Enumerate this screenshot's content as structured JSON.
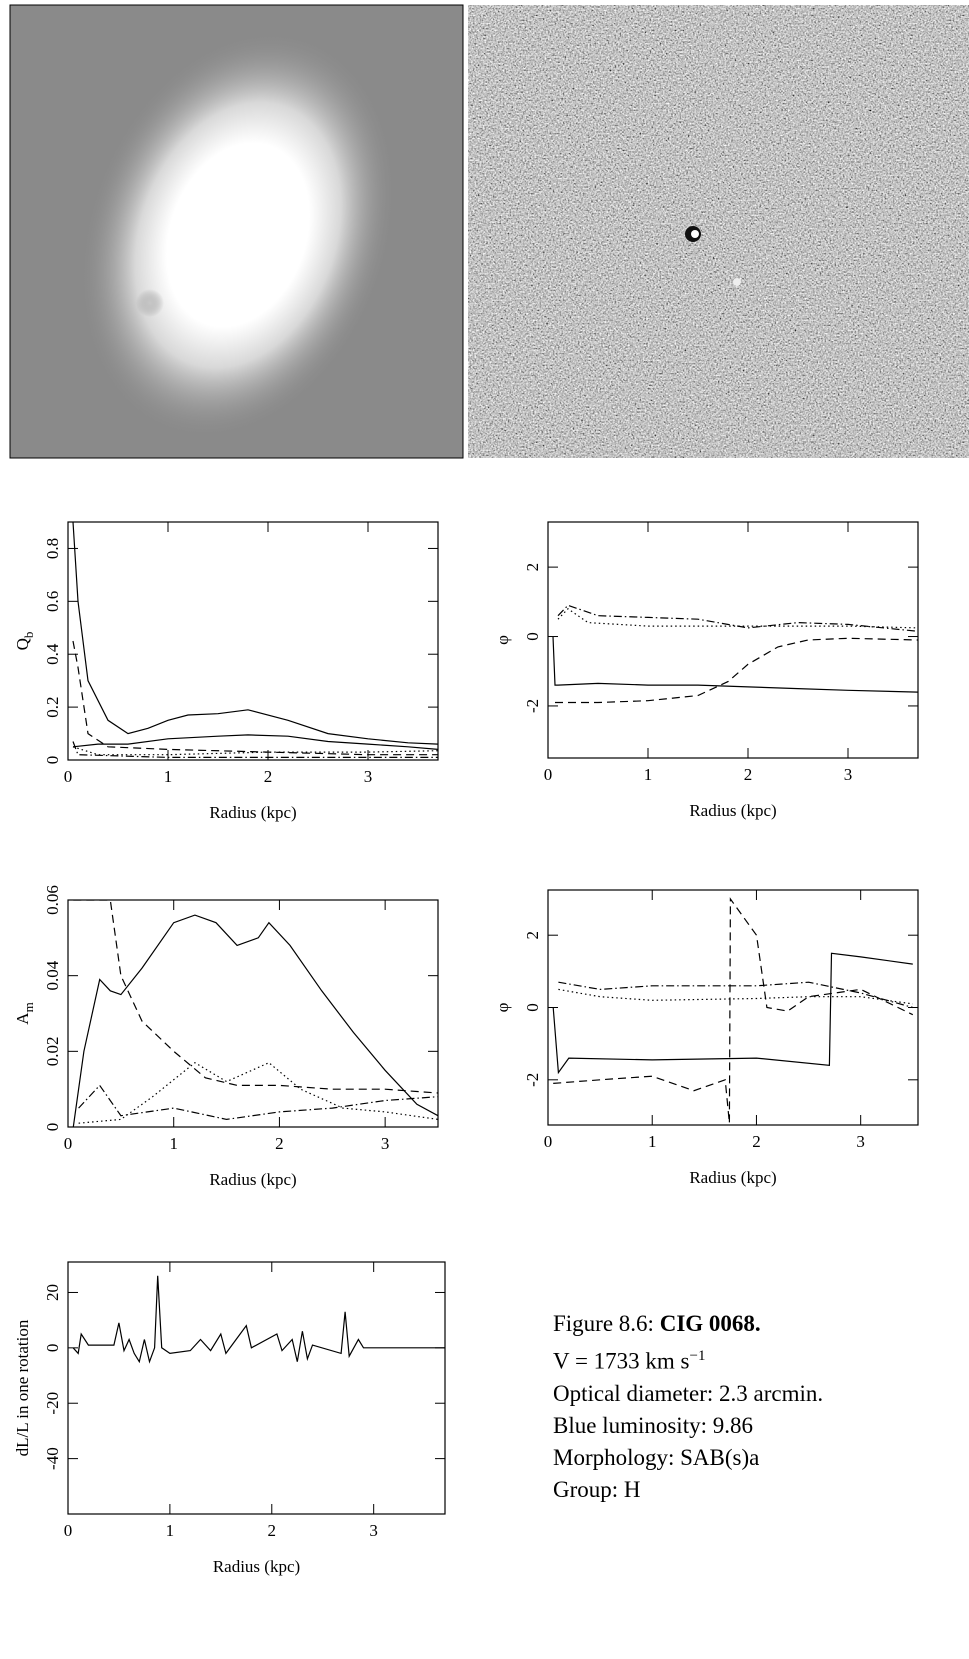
{
  "figure": {
    "caption": {
      "label": "Figure 8.6:",
      "name": "CIG 0068.",
      "velocity": {
        "text": "V = 1733 km s",
        "sup": "−1"
      },
      "lines": [
        "Optical diameter: 2.3 arcmin.",
        "Blue luminosity: 9.86",
        "Morphology: SAB(s)a",
        "Group: H"
      ]
    }
  },
  "chart_data": [
    {
      "type": "line",
      "xlabel": "Radius (kpc)",
      "ylabel": "Q",
      "ylabel_subscript": "b",
      "xlim": [
        0,
        3.7
      ],
      "ylim": [
        0,
        0.9
      ],
      "xticks": [
        0,
        1,
        2,
        3
      ],
      "yticks": [
        0,
        0.2,
        0.4,
        0.6,
        0.8
      ],
      "series": [
        {
          "style": "solid",
          "color": "#000000",
          "x": [
            0.05,
            0.1,
            0.2,
            0.4,
            0.6,
            0.8,
            1.0,
            1.2,
            1.5,
            1.8,
            2.2,
            2.6,
            3.0,
            3.4,
            3.7
          ],
          "values": [
            0.9,
            0.6,
            0.3,
            0.15,
            0.1,
            0.12,
            0.15,
            0.17,
            0.175,
            0.19,
            0.15,
            0.1,
            0.08,
            0.065,
            0.06
          ]
        },
        {
          "style": "solid",
          "color": "#000000",
          "x": [
            0.05,
            0.3,
            0.6,
            1.0,
            1.5,
            1.8,
            2.2,
            2.6,
            3.0,
            3.4,
            3.7
          ],
          "values": [
            0.05,
            0.06,
            0.06,
            0.08,
            0.09,
            0.095,
            0.09,
            0.07,
            0.06,
            0.05,
            0.04
          ]
        },
        {
          "style": "dashed",
          "color": "#000000",
          "x": [
            0.05,
            0.1,
            0.2,
            0.4,
            1,
            2,
            3,
            3.7
          ],
          "values": [
            0.45,
            0.35,
            0.1,
            0.05,
            0.04,
            0.03,
            0.02,
            0.02
          ]
        },
        {
          "style": "dotted",
          "color": "#000000",
          "x": [
            0.05,
            0.3,
            1,
            2,
            3,
            3.7
          ],
          "values": [
            0.05,
            0.02,
            0.02,
            0.03,
            0.03,
            0.035
          ]
        },
        {
          "style": "dashdot",
          "color": "#000000",
          "x": [
            0.05,
            0.1,
            1,
            2,
            3.7
          ],
          "values": [
            0.07,
            0.02,
            0.01,
            0.01,
            0.01
          ]
        }
      ]
    },
    {
      "type": "line",
      "xlabel": "Radius (kpc)",
      "ylabel": "φ",
      "xlim": [
        0,
        3.7
      ],
      "ylim": [
        -3.5,
        3.3
      ],
      "xticks": [
        0,
        1,
        2,
        3
      ],
      "yticks": [
        -2,
        0,
        2
      ],
      "series": [
        {
          "style": "solid",
          "color": "#000000",
          "x": [
            0.05,
            0.07,
            0.1,
            0.5,
            1,
            1.5,
            2,
            2.5,
            3,
            3.7
          ],
          "values": [
            0,
            -1.4,
            -1.4,
            -1.35,
            -1.4,
            -1.4,
            -1.45,
            -1.5,
            -1.55,
            -1.6
          ]
        },
        {
          "style": "dashed",
          "color": "#000000",
          "x": [
            0.07,
            0.5,
            1,
            1.5,
            1.8,
            2,
            2.3,
            2.6,
            3,
            3.7
          ],
          "values": [
            -1.9,
            -1.9,
            -1.85,
            -1.7,
            -1.3,
            -0.8,
            -0.3,
            -0.1,
            -0.05,
            -0.1
          ]
        },
        {
          "style": "dotted",
          "color": "#000000",
          "x": [
            0.1,
            0.2,
            0.4,
            1,
            2,
            3,
            3.7
          ],
          "values": [
            0.5,
            0.8,
            0.4,
            0.3,
            0.3,
            0.3,
            0.25
          ]
        },
        {
          "style": "dashdot",
          "color": "#000000",
          "x": [
            0.1,
            0.2,
            0.5,
            1,
            1.5,
            2,
            2.5,
            3,
            3.7
          ],
          "values": [
            0.6,
            0.9,
            0.6,
            0.55,
            0.5,
            0.25,
            0.4,
            0.35,
            0.15
          ]
        }
      ]
    },
    {
      "type": "line",
      "xlabel": "Radius (kpc)",
      "ylabel": "A",
      "ylabel_subscript": "m",
      "xlim": [
        0,
        3.5
      ],
      "ylim": [
        0,
        0.06
      ],
      "xticks": [
        0,
        1,
        2,
        3
      ],
      "yticks": [
        0,
        0.02,
        0.04,
        0.06
      ],
      "series": [
        {
          "style": "solid",
          "color": "#000000",
          "x": [
            0.05,
            0.15,
            0.3,
            0.4,
            0.5,
            0.7,
            1,
            1.2,
            1.4,
            1.6,
            1.8,
            1.9,
            2.1,
            2.4,
            2.7,
            3.0,
            3.3,
            3.5
          ],
          "values": [
            0,
            0.02,
            0.039,
            0.036,
            0.035,
            0.042,
            0.054,
            0.056,
            0.054,
            0.048,
            0.05,
            0.054,
            0.048,
            0.036,
            0.025,
            0.015,
            0.006,
            0.003
          ]
        },
        {
          "style": "dashed",
          "color": "#000000",
          "x": [
            0.05,
            0.4,
            0.5,
            0.7,
            1,
            1.3,
            1.6,
            2,
            2.5,
            3,
            3.5
          ],
          "values": [
            0.06,
            0.06,
            0.04,
            0.028,
            0.02,
            0.013,
            0.011,
            0.011,
            0.01,
            0.01,
            0.009
          ]
        },
        {
          "style": "dotted",
          "color": "#000000",
          "x": [
            0.1,
            0.5,
            0.8,
            1.2,
            1.5,
            1.9,
            2.2,
            2.6,
            3,
            3.5
          ],
          "values": [
            0.001,
            0.002,
            0.008,
            0.017,
            0.012,
            0.017,
            0.01,
            0.005,
            0.004,
            0.002
          ]
        },
        {
          "style": "dashdot",
          "color": "#000000",
          "x": [
            0.1,
            0.3,
            0.5,
            1,
            1.5,
            2,
            2.5,
            3,
            3.5
          ],
          "values": [
            0.005,
            0.011,
            0.003,
            0.005,
            0.002,
            0.004,
            0.005,
            0.007,
            0.008
          ]
        }
      ]
    },
    {
      "type": "line",
      "xlabel": "Radius (kpc)",
      "ylabel": "φ",
      "xlim": [
        0,
        3.55
      ],
      "ylim": [
        -3.25,
        3.25
      ],
      "xticks": [
        0,
        1,
        2,
        3
      ],
      "yticks": [
        -2,
        0,
        2
      ],
      "series": [
        {
          "style": "solid",
          "color": "#000000",
          "x": [
            0.05,
            0.1,
            0.2,
            1,
            2,
            2.7,
            2.72,
            3,
            3.5
          ],
          "values": [
            0,
            -1.8,
            -1.4,
            -1.45,
            -1.4,
            -1.6,
            1.5,
            1.4,
            1.2
          ]
        },
        {
          "style": "dashed",
          "color": "#000000",
          "x": [
            0.05,
            0.5,
            1,
            1.4,
            1.7,
            1.74,
            1.75,
            2,
            2.1,
            2.3,
            2.5,
            3,
            3.5
          ],
          "values": [
            -2.1,
            -2,
            -1.9,
            -2.3,
            -2,
            -3.2,
            3.0,
            2,
            0,
            -0.1,
            0.3,
            0.5,
            -0.2
          ]
        },
        {
          "style": "dotted",
          "color": "#000000",
          "x": [
            0.1,
            0.5,
            1,
            2,
            2.5,
            3,
            3.5
          ],
          "values": [
            0.5,
            0.3,
            0.2,
            0.25,
            0.3,
            0.3,
            0.1
          ]
        },
        {
          "style": "dashdot",
          "color": "#000000",
          "x": [
            0.1,
            0.5,
            1,
            1.5,
            2,
            2.5,
            3,
            3.5
          ],
          "values": [
            0.7,
            0.5,
            0.6,
            0.6,
            0.6,
            0.7,
            0.4,
            0.0
          ]
        }
      ]
    },
    {
      "type": "line",
      "xlabel": "Radius (kpc)",
      "ylabel": "dL/L in one rotation",
      "xlim": [
        0,
        3.7
      ],
      "ylim": [
        -60,
        31
      ],
      "xticks": [
        0,
        1,
        2,
        3
      ],
      "yticks": [
        -40,
        -20,
        0,
        20
      ],
      "series": [
        {
          "style": "solid",
          "color": "#000000",
          "x": [
            0.05,
            0.1,
            0.13,
            0.2,
            0.45,
            0.5,
            0.55,
            0.6,
            0.65,
            0.7,
            0.75,
            0.8,
            0.85,
            0.88,
            0.92,
            1.0,
            1.2,
            1.3,
            1.4,
            1.5,
            1.55,
            1.65,
            1.75,
            1.8,
            2.05,
            2.1,
            2.2,
            2.25,
            2.3,
            2.35,
            2.4,
            2.68,
            2.72,
            2.76,
            2.85,
            2.9,
            3.5,
            3.7
          ],
          "values": [
            0,
            -2,
            5,
            1,
            1,
            9,
            -1,
            3,
            -2,
            -5,
            3,
            -5,
            0,
            26,
            0,
            -2,
            -1,
            3,
            -1,
            5,
            -2,
            3,
            8,
            0,
            5,
            -1,
            3,
            -5,
            6,
            -4,
            1,
            -2,
            13,
            -3,
            3,
            0,
            0,
            0
          ]
        }
      ]
    }
  ]
}
